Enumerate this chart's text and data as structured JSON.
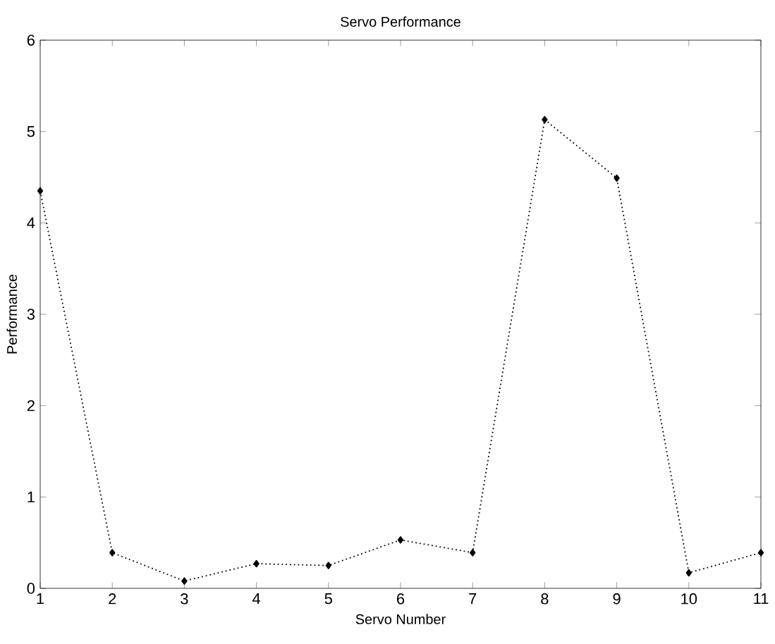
{
  "chart_data": {
    "type": "line",
    "title": "Servo Performance",
    "xlabel": "Servo Number",
    "ylabel": "Performance",
    "x": [
      1,
      2,
      3,
      4,
      5,
      6,
      7,
      8,
      9,
      10,
      11
    ],
    "series": [
      {
        "color": "#000000",
        "values": [
          4.35,
          0.39,
          0.08,
          0.27,
          0.25,
          0.53,
          0.39,
          5.13,
          4.49,
          0.17,
          0.39
        ]
      }
    ],
    "xlim": [
      1,
      11
    ],
    "xticks": [
      1,
      2,
      3,
      4,
      5,
      6,
      7,
      8,
      9,
      10,
      11
    ],
    "ylim": [
      0,
      6
    ],
    "yticks": [
      0,
      1,
      2,
      3,
      4,
      5,
      6
    ],
    "grid": false,
    "marker": "diamond",
    "line_style": "dotted"
  }
}
